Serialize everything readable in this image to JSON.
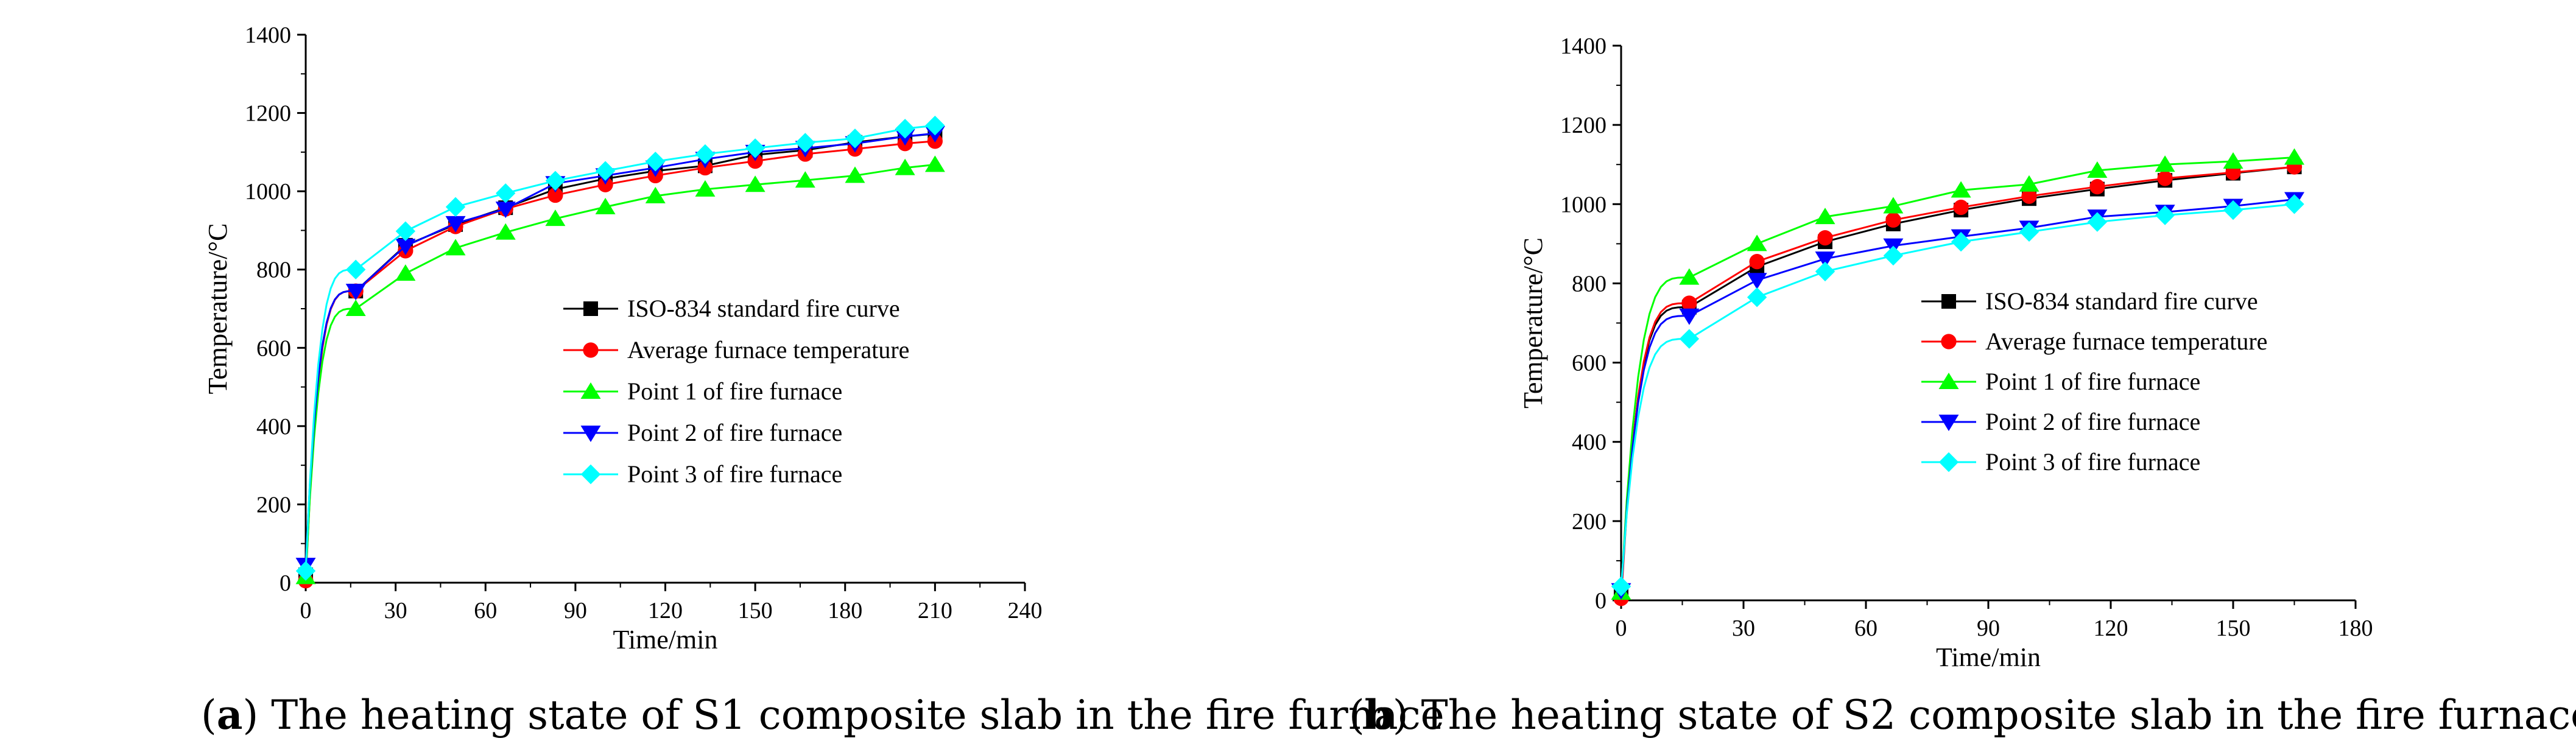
{
  "figure": {
    "panels": [
      {
        "caption_letter": "a",
        "caption_text": "The heating state of S1 composite slab in the fire furnace"
      },
      {
        "caption_letter": "b",
        "caption_text": "The heating state of S2 composite slab in the fire furnace"
      }
    ]
  },
  "chart_data": [
    {
      "type": "line",
      "title": "",
      "xlabel": "Time/min",
      "ylabel": "Temperature/°C",
      "xlim": [
        0,
        240
      ],
      "ylim": [
        0,
        1400
      ],
      "xticks": [
        0,
        30,
        60,
        90,
        120,
        150,
        180,
        210,
        240
      ],
      "yticks": [
        0,
        200,
        400,
        600,
        800,
        1000,
        1200,
        1400
      ],
      "grid": false,
      "legend_position": "center-right",
      "series": [
        {
          "name": "ISO-834 standard fire curve",
          "color": "#000000",
          "marker": "square",
          "x": [
            0,
            16.7,
            33.3,
            50,
            66.7,
            83.3,
            100,
            116.7,
            133.3,
            150,
            166.7,
            183.3,
            200,
            210
          ],
          "y": [
            20,
            745,
            862,
            915,
            958,
            1005,
            1032,
            1052,
            1065,
            1093,
            1105,
            1125,
            1140,
            1147
          ]
        },
        {
          "name": "Average furnace temperature",
          "color": "#ff0000",
          "marker": "circle",
          "x": [
            0,
            16.7,
            33.3,
            50,
            66.7,
            83.3,
            100,
            116.7,
            133.3,
            150,
            166.7,
            183.3,
            200,
            210
          ],
          "y": [
            5,
            745,
            848,
            910,
            955,
            990,
            1017,
            1040,
            1060,
            1077,
            1095,
            1108,
            1122,
            1128
          ]
        },
        {
          "name": "Point 1 of fire furnace",
          "color": "#00ff00",
          "marker": "triangle-up",
          "x": [
            0,
            16.7,
            33.3,
            50,
            66.7,
            83.3,
            100,
            116.7,
            133.3,
            150,
            166.7,
            183.3,
            200,
            210
          ],
          "y": [
            15,
            700,
            790,
            855,
            895,
            930,
            960,
            988,
            1005,
            1017,
            1028,
            1040,
            1060,
            1068
          ]
        },
        {
          "name": "Point 2 of fire furnace",
          "color": "#0000ff",
          "marker": "triangle-down",
          "x": [
            0,
            16.7,
            33.3,
            50,
            66.7,
            83.3,
            100,
            116.7,
            133.3,
            150,
            166.7,
            183.3,
            200,
            210
          ],
          "y": [
            45,
            745,
            860,
            918,
            955,
            1020,
            1040,
            1060,
            1082,
            1100,
            1110,
            1122,
            1140,
            1148
          ]
        },
        {
          "name": "Point 3 of fire furnace",
          "color": "#00ffff",
          "marker": "diamond",
          "x": [
            0,
            16.7,
            33.3,
            50,
            66.7,
            83.3,
            100,
            116.7,
            133.3,
            150,
            166.7,
            183.3,
            200,
            210
          ],
          "y": [
            30,
            800,
            898,
            960,
            995,
            1027,
            1052,
            1076,
            1095,
            1110,
            1124,
            1135,
            1160,
            1168
          ]
        }
      ]
    },
    {
      "type": "line",
      "title": "",
      "xlabel": "Time/min",
      "ylabel": "Temperature/°C",
      "xlim": [
        0,
        180
      ],
      "ylim": [
        0,
        1400
      ],
      "xticks": [
        0,
        30,
        60,
        90,
        120,
        150,
        180
      ],
      "yticks": [
        0,
        200,
        400,
        600,
        800,
        1000,
        1200,
        1400
      ],
      "grid": false,
      "legend_position": "center-right",
      "series": [
        {
          "name": "ISO-834 standard fire curve",
          "color": "#000000",
          "marker": "square",
          "x": [
            0,
            16.7,
            33.3,
            50,
            66.7,
            83.3,
            100,
            116.7,
            133.3,
            150,
            165
          ],
          "y": [
            20,
            740,
            842,
            905,
            950,
            985,
            1014,
            1038,
            1060,
            1078,
            1094
          ]
        },
        {
          "name": "Average furnace temperature",
          "color": "#ff0000",
          "marker": "circle",
          "x": [
            0,
            16.7,
            33.3,
            50,
            66.7,
            83.3,
            100,
            116.7,
            133.3,
            150,
            165
          ],
          "y": [
            5,
            750,
            855,
            915,
            960,
            992,
            1020,
            1044,
            1065,
            1080,
            1094
          ]
        },
        {
          "name": "Point 1 of fire furnace",
          "color": "#00ff00",
          "marker": "triangle-up",
          "x": [
            0,
            16.7,
            33.3,
            50,
            66.7,
            83.3,
            100,
            116.7,
            133.3,
            150,
            165
          ],
          "y": [
            20,
            815,
            900,
            968,
            995,
            1035,
            1050,
            1085,
            1100,
            1108,
            1118
          ]
        },
        {
          "name": "Point 2 of fire furnace",
          "color": "#0000ff",
          "marker": "triangle-down",
          "x": [
            0,
            16.7,
            33.3,
            50,
            66.7,
            83.3,
            100,
            116.7,
            133.3,
            150,
            165
          ],
          "y": [
            25,
            718,
            808,
            862,
            895,
            918,
            940,
            968,
            980,
            995,
            1012
          ]
        },
        {
          "name": "Point 3 of fire furnace",
          "color": "#00ffff",
          "marker": "diamond",
          "x": [
            0,
            16.7,
            33.3,
            50,
            66.7,
            83.3,
            100,
            116.7,
            133.3,
            150,
            165
          ],
          "y": [
            35,
            660,
            765,
            830,
            870,
            905,
            930,
            955,
            972,
            985,
            1000
          ]
        }
      ]
    }
  ]
}
